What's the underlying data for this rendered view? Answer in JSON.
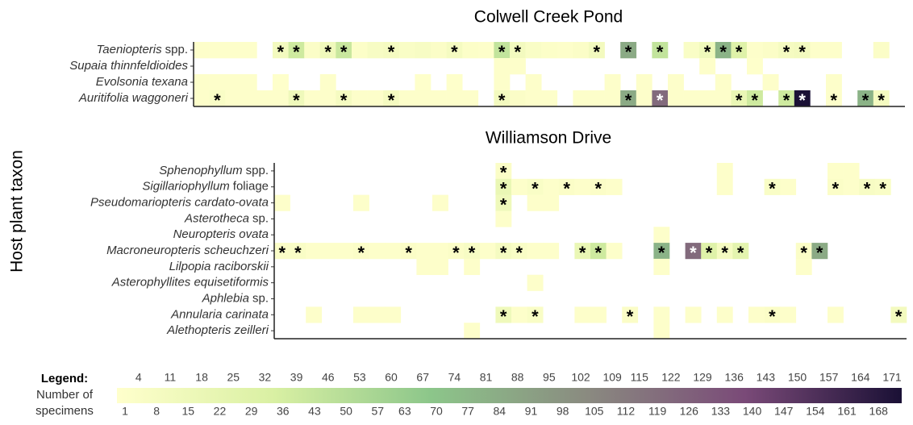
{
  "chart_data": {
    "type": "heatmap",
    "y_label": "Host plant taxon",
    "panels": [
      {
        "title": "Colwell Creek Pond",
        "rows": [
          [
            "Taeniopteris",
            "spp."
          ],
          [
            "Supaia thinnfeldioides"
          ],
          [
            "Evolsonia texana"
          ],
          [
            "Auritifolia waggoneri"
          ]
        ],
        "categories": [
          null,
          null,
          null,
          null,
          null,
          null,
          null,
          null,
          null,
          null,
          null,
          null,
          null,
          null,
          null,
          null,
          null,
          null,
          null,
          null,
          null,
          null,
          null,
          null,
          null,
          null,
          null,
          null,
          null,
          null,
          null,
          null,
          null,
          null,
          null,
          null,
          null,
          null,
          null,
          null,
          null,
          null,
          null,
          null,
          null
        ],
        "values": [
          [
            3,
            3,
            3,
            3,
            null,
            12,
            40,
            5,
            14,
            42,
            4,
            8,
            10,
            6,
            8,
            5,
            10,
            4,
            3,
            45,
            12,
            6,
            4,
            3,
            5,
            12,
            null,
            85,
            null,
            45,
            null,
            6,
            15,
            80,
            30,
            3,
            5,
            10,
            12,
            3,
            3,
            null,
            null,
            5,
            null
          ],
          [
            null,
            null,
            null,
            null,
            null,
            null,
            null,
            null,
            null,
            null,
            null,
            null,
            null,
            null,
            null,
            null,
            null,
            null,
            null,
            3,
            3,
            null,
            null,
            null,
            null,
            null,
            null,
            null,
            null,
            null,
            null,
            null,
            3,
            null,
            null,
            2,
            null,
            null,
            null,
            null,
            null,
            null,
            null,
            null,
            null
          ],
          [
            3,
            3,
            3,
            3,
            null,
            2,
            null,
            null,
            3,
            null,
            null,
            null,
            null,
            null,
            2,
            null,
            2,
            null,
            null,
            3,
            null,
            3,
            null,
            null,
            null,
            null,
            3,
            null,
            3,
            null,
            3,
            null,
            null,
            3,
            null,
            null,
            3,
            null,
            null,
            null,
            3,
            null,
            null,
            null,
            null
          ],
          [
            3,
            6,
            3,
            3,
            3,
            3,
            15,
            3,
            3,
            10,
            3,
            3,
            10,
            3,
            3,
            3,
            3,
            3,
            null,
            12,
            5,
            3,
            3,
            null,
            3,
            3,
            3,
            85,
            3,
            120,
            3,
            3,
            3,
            3,
            20,
            40,
            null,
            40,
            171,
            null,
            3,
            null,
            80,
            10,
            null
          ]
        ],
        "significant": [
          [
            5,
            6,
            8,
            9,
            12,
            16,
            19,
            20,
            25,
            27,
            29,
            32,
            33,
            34,
            37,
            38
          ],
          [],
          [],
          [
            1,
            6,
            9,
            12,
            19,
            27,
            29,
            34,
            35,
            37,
            38,
            40,
            42,
            43
          ]
        ]
      },
      {
        "title": "Williamson Drive",
        "rows": [
          [
            "Sphenophyllum",
            "spp."
          ],
          [
            "Sigillariophyllum",
            "foliage"
          ],
          [
            "Pseudomariopteris cardato-ovata"
          ],
          [
            "Asterotheca",
            "sp."
          ],
          [
            "Neuropteris ovata"
          ],
          [
            "Macroneuropteris scheuchzeri"
          ],
          [
            "Lilpopia raciborskii"
          ],
          [
            "Asterophyllites equisetiformis"
          ],
          [
            "Aphlebia",
            "sp."
          ],
          [
            "Annularia carinata"
          ],
          [
            "Alethopteris zeilleri"
          ]
        ],
        "categories": [
          null,
          null,
          null,
          null,
          null,
          null,
          null,
          null,
          null,
          null,
          null,
          null,
          null,
          null,
          null,
          null,
          null,
          null,
          null,
          null,
          null,
          null,
          null,
          null,
          null,
          null,
          null,
          null,
          null,
          null,
          null,
          null,
          null,
          null,
          null,
          null,
          null,
          null,
          null,
          null
        ],
        "values": [
          [
            null,
            null,
            null,
            null,
            null,
            null,
            null,
            null,
            null,
            null,
            null,
            null,
            null,
            null,
            5,
            null,
            null,
            null,
            null,
            null,
            null,
            null,
            null,
            null,
            null,
            null,
            null,
            null,
            3,
            null,
            null,
            null,
            null,
            null,
            null,
            3,
            3,
            null,
            null,
            null
          ],
          [
            null,
            null,
            null,
            null,
            null,
            null,
            null,
            null,
            null,
            null,
            null,
            null,
            null,
            null,
            20,
            3,
            6,
            3,
            5,
            3,
            5,
            3,
            null,
            null,
            null,
            null,
            null,
            null,
            3,
            null,
            null,
            6,
            3,
            null,
            null,
            5,
            3,
            8,
            6,
            null
          ],
          [
            3,
            null,
            null,
            null,
            null,
            3,
            null,
            null,
            null,
            null,
            3,
            null,
            null,
            null,
            15,
            null,
            3,
            3,
            null,
            null,
            null,
            null,
            null,
            null,
            null,
            null,
            null,
            null,
            null,
            null,
            null,
            null,
            null,
            null,
            null,
            null,
            null,
            null,
            null,
            null
          ],
          [
            null,
            null,
            null,
            null,
            null,
            null,
            null,
            null,
            null,
            null,
            null,
            null,
            null,
            null,
            3,
            null,
            null,
            null,
            null,
            null,
            null,
            null,
            null,
            null,
            null,
            null,
            null,
            null,
            null,
            null,
            null,
            null,
            null,
            null,
            null,
            null,
            null,
            null,
            null,
            null
          ],
          [
            null,
            null,
            null,
            null,
            null,
            null,
            null,
            null,
            null,
            null,
            null,
            null,
            null,
            null,
            null,
            null,
            null,
            null,
            null,
            null,
            null,
            null,
            null,
            null,
            3,
            null,
            null,
            null,
            null,
            null,
            null,
            null,
            null,
            null,
            null,
            null,
            null,
            null,
            null,
            null
          ],
          [
            5,
            6,
            3,
            3,
            3,
            5,
            3,
            3,
            5,
            3,
            3,
            5,
            8,
            3,
            10,
            6,
            3,
            3,
            null,
            20,
            40,
            3,
            null,
            null,
            80,
            null,
            120,
            30,
            10,
            25,
            null,
            null,
            null,
            5,
            85,
            null,
            null,
            null,
            null,
            null
          ],
          [
            null,
            null,
            null,
            null,
            null,
            null,
            null,
            null,
            null,
            3,
            3,
            null,
            3,
            null,
            null,
            null,
            null,
            null,
            null,
            null,
            null,
            null,
            null,
            null,
            3,
            null,
            null,
            null,
            null,
            null,
            null,
            null,
            null,
            3,
            null,
            null,
            null,
            null,
            null,
            null
          ],
          [
            null,
            null,
            null,
            null,
            null,
            null,
            null,
            null,
            null,
            null,
            null,
            null,
            null,
            null,
            null,
            null,
            3,
            null,
            null,
            null,
            null,
            null,
            null,
            null,
            null,
            null,
            null,
            null,
            null,
            null,
            null,
            null,
            null,
            null,
            null,
            null,
            null,
            null,
            null,
            null
          ],
          [
            null,
            null,
            null,
            null,
            null,
            null,
            null,
            null,
            null,
            null,
            null,
            null,
            null,
            null,
            null,
            null,
            null,
            null,
            null,
            null,
            null,
            null,
            null,
            null,
            null,
            null,
            null,
            null,
            null,
            null,
            null,
            null,
            null,
            null,
            null,
            null,
            null,
            null,
            null,
            null
          ],
          [
            null,
            null,
            3,
            null,
            null,
            3,
            3,
            3,
            null,
            null,
            null,
            null,
            null,
            null,
            15,
            3,
            6,
            null,
            null,
            3,
            3,
            null,
            5,
            null,
            3,
            null,
            3,
            null,
            3,
            null,
            3,
            5,
            3,
            null,
            null,
            3,
            null,
            null,
            null,
            12
          ],
          [
            null,
            null,
            null,
            null,
            null,
            null,
            null,
            null,
            null,
            null,
            null,
            null,
            3,
            null,
            null,
            null,
            null,
            null,
            null,
            null,
            null,
            null,
            null,
            null,
            3,
            null,
            null,
            null,
            null,
            null,
            null,
            null,
            null,
            null,
            null,
            null,
            null,
            null,
            null,
            null
          ]
        ],
        "significant": [
          [
            14
          ],
          [
            14,
            16,
            18,
            20,
            31,
            35,
            37,
            38
          ],
          [
            14
          ],
          [],
          [],
          [
            0,
            1,
            5,
            8,
            11,
            12,
            14,
            15,
            19,
            20,
            24,
            26,
            27,
            28,
            29,
            33,
            34
          ],
          [],
          [],
          [],
          [
            14,
            16,
            22,
            31,
            39
          ],
          []
        ]
      }
    ],
    "legend": {
      "title": "Legend:",
      "label": [
        "Number of",
        "specimens"
      ],
      "lim": [
        1,
        171
      ],
      "colors": [
        "#ffffcc",
        "#d9f0a3",
        "#8cc68a",
        "#8a8a80",
        "#7a4a78",
        "#1a1035"
      ],
      "ticks": [
        1,
        4,
        8,
        11,
        15,
        18,
        22,
        25,
        29,
        32,
        36,
        39,
        43,
        46,
        50,
        53,
        57,
        60,
        63,
        67,
        70,
        74,
        77,
        81,
        84,
        88,
        91,
        95,
        98,
        102,
        105,
        109,
        112,
        115,
        119,
        122,
        126,
        129,
        133,
        136,
        140,
        143,
        147,
        150,
        154,
        157,
        161,
        164,
        168,
        171
      ]
    },
    "marker": "*"
  }
}
